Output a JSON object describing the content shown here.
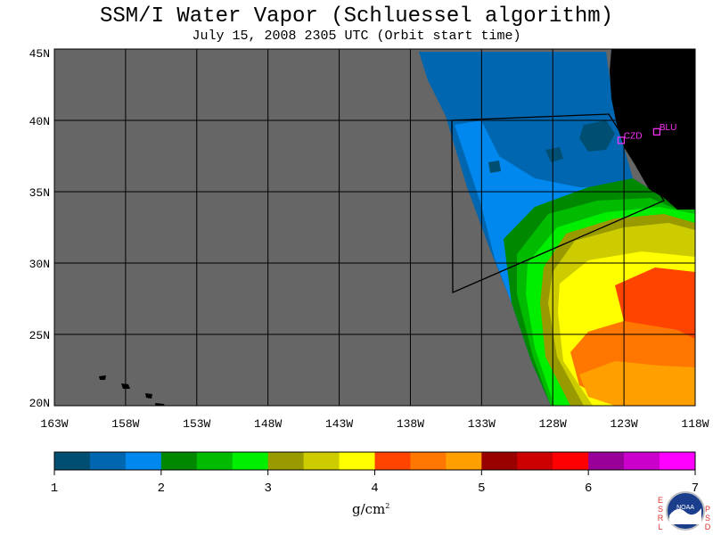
{
  "title": "SSM/I Water Vapor (Schluessel algorithm)",
  "subtitle": "July 15, 2008  2305 UTC  (Orbit start time)",
  "map": {
    "lat_range": [
      20,
      45
    ],
    "lon_range": [
      -163,
      -118
    ],
    "lat_labels": [
      "45N",
      "40N",
      "35N",
      "30N",
      "25N",
      "20N"
    ],
    "lat_values": [
      45,
      40,
      35,
      30,
      25,
      20
    ],
    "lon_labels": [
      "163W",
      "158W",
      "153W",
      "148W",
      "143W",
      "138W",
      "133W",
      "128W",
      "123W",
      "118W"
    ],
    "lon_values": [
      -163,
      -158,
      -153,
      -148,
      -143,
      -138,
      -133,
      -128,
      -123,
      -118
    ],
    "stations": [
      {
        "id": "CZD",
        "lat": 38.6,
        "lon": -123.2
      },
      {
        "id": "BLU",
        "lat": 39.2,
        "lon": -120.7
      }
    ],
    "colors": {
      "no_data": "#666666",
      "land": "#000000",
      "grid": "#000000",
      "station": "#ff33ff"
    }
  },
  "colorbar": {
    "tick_labels": [
      "1",
      "2",
      "3",
      "4",
      "5",
      "6",
      "7"
    ],
    "min": 1,
    "max": 7,
    "colors": [
      "#004f73",
      "#0066b0",
      "#0088ee",
      "#008800",
      "#00bb00",
      "#00ee00",
      "#999900",
      "#cccc00",
      "#ffff00",
      "#ff4400",
      "#ff7700",
      "#ffa000",
      "#990000",
      "#cc0000",
      "#ff0000",
      "#990099",
      "#cc00cc",
      "#ff00ff"
    ],
    "unit_base": "g/cm",
    "unit_exp": "2"
  },
  "logo": {
    "left_text": [
      "E",
      "S",
      "R",
      "L"
    ],
    "right_text": [
      "P",
      "S",
      "D"
    ],
    "badge": "NOAA"
  }
}
